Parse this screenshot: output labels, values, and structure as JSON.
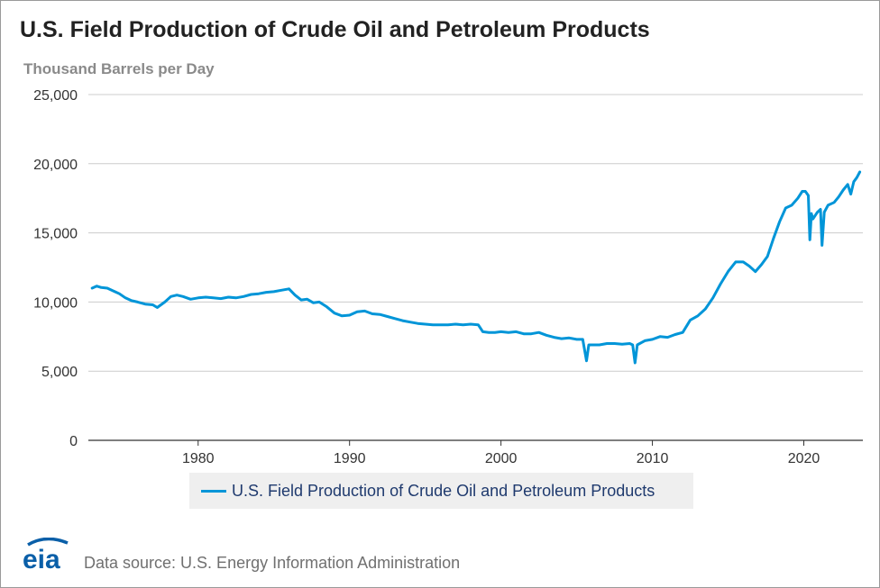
{
  "title": "U.S. Field Production of Crude Oil and Petroleum Products",
  "unit_label": "Thousand Barrels per Day",
  "legend_label": "U.S. Field Production of Crude Oil and Petroleum Products",
  "source": "Data source: U.S. Energy Information Administration",
  "logo_text": "eia",
  "colors": {
    "line": "#0095d8",
    "grid": "#cccccc",
    "axis": "#333333",
    "title": "#222222",
    "logo": "#0a5fa8"
  },
  "chart_data": {
    "type": "line",
    "x_label_ticks": [
      "1980",
      "1990",
      "2000",
      "2010",
      "2020"
    ],
    "y_tick_labels": [
      "0",
      "5,000",
      "10,000",
      "15,000",
      "20,000",
      "25,000"
    ],
    "y_ticks": [
      0,
      5000,
      10000,
      15000,
      20000,
      25000
    ],
    "ylim": [
      0,
      25000
    ],
    "xlim": [
      1972.75,
      2023.9
    ],
    "grid": "horizontal",
    "legend_position": "bottom",
    "series": [
      {
        "name": "U.S. Field Production of Crude Oil and Petroleum Products",
        "x": [
          1973.0,
          1973.3,
          1973.6,
          1974.0,
          1974.4,
          1974.8,
          1975.2,
          1975.6,
          1976.0,
          1976.5,
          1977.0,
          1977.3,
          1977.8,
          1978.2,
          1978.6,
          1979.0,
          1979.5,
          1980.0,
          1980.5,
          1981.0,
          1981.5,
          1982.0,
          1982.5,
          1983.0,
          1983.5,
          1984.0,
          1984.5,
          1985.0,
          1985.5,
          1986.0,
          1986.4,
          1986.8,
          1987.2,
          1987.6,
          1988.0,
          1988.5,
          1989.0,
          1989.5,
          1990.0,
          1990.5,
          1991.0,
          1991.5,
          1992.0,
          1992.5,
          1993.0,
          1993.5,
          1994.0,
          1994.5,
          1995.0,
          1995.5,
          1996.0,
          1996.5,
          1997.0,
          1997.5,
          1998.0,
          1998.5,
          1998.8,
          1999.2,
          1999.6,
          2000.0,
          2000.5,
          2001.0,
          2001.5,
          2002.0,
          2002.5,
          2003.0,
          2003.5,
          2004.0,
          2004.5,
          2005.0,
          2005.4,
          2005.65,
          2005.8,
          2006.0,
          2006.5,
          2007.0,
          2007.5,
          2008.0,
          2008.5,
          2008.7,
          2008.85,
          2009.0,
          2009.5,
          2010.0,
          2010.5,
          2011.0,
          2011.5,
          2012.0,
          2012.5,
          2013.0,
          2013.5,
          2014.0,
          2014.5,
          2015.0,
          2015.5,
          2016.0,
          2016.4,
          2016.8,
          2017.2,
          2017.6,
          2018.0,
          2018.4,
          2018.8,
          2019.2,
          2019.6,
          2019.9,
          2020.1,
          2020.3,
          2020.4,
          2020.5,
          2020.6,
          2020.9,
          2021.1,
          2021.2,
          2021.35,
          2021.6,
          2022.0,
          2022.3,
          2022.6,
          2022.9,
          2023.1,
          2023.3,
          2023.5,
          2023.7
        ],
        "y": [
          11000,
          11150,
          11050,
          11000,
          10800,
          10600,
          10300,
          10100,
          10000,
          9850,
          9800,
          9600,
          10000,
          10400,
          10500,
          10400,
          10200,
          10300,
          10350,
          10300,
          10250,
          10350,
          10300,
          10400,
          10550,
          10600,
          10700,
          10750,
          10850,
          10950,
          10500,
          10150,
          10200,
          9950,
          10000,
          9650,
          9200,
          9000,
          9050,
          9300,
          9350,
          9150,
          9100,
          8950,
          8800,
          8650,
          8550,
          8450,
          8400,
          8350,
          8350,
          8350,
          8400,
          8350,
          8400,
          8350,
          7850,
          7800,
          7800,
          7850,
          7800,
          7850,
          7700,
          7700,
          7800,
          7600,
          7450,
          7350,
          7400,
          7300,
          7300,
          5750,
          6900,
          6900,
          6900,
          7000,
          7000,
          6950,
          7000,
          6900,
          5600,
          6900,
          7200,
          7300,
          7500,
          7450,
          7650,
          7800,
          8700,
          9000,
          9500,
          10300,
          11300,
          12200,
          12900,
          12900,
          12600,
          12200,
          12700,
          13300,
          14600,
          15800,
          16800,
          17000,
          17500,
          18000,
          18000,
          17700,
          14500,
          16400,
          16000,
          16500,
          16700,
          14100,
          16500,
          17000,
          17200,
          17600,
          18100,
          18500,
          17800,
          18700,
          19000,
          19400
        ]
      }
    ]
  }
}
